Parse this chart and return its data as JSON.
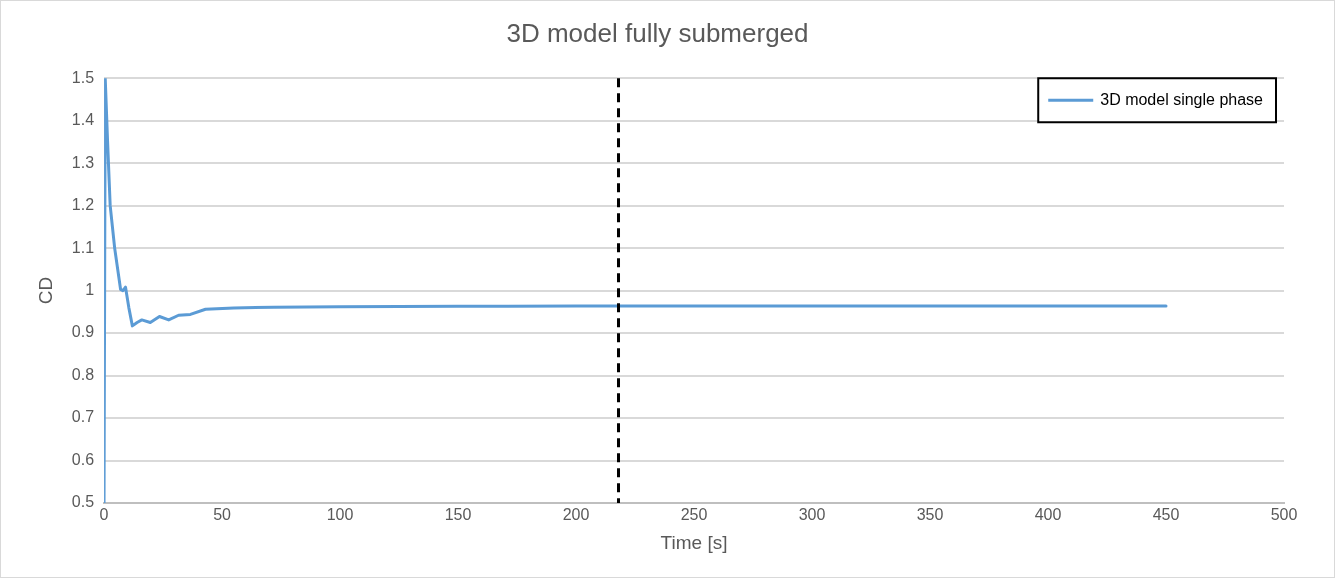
{
  "chart_data": {
    "type": "line",
    "title": "3D model fully submerged",
    "xlabel": "Time [s]",
    "ylabel": "CD",
    "series": [
      {
        "name": "3D model single phase",
        "color": "#5b9bd5",
        "x": [
          0,
          0.5,
          1.5,
          2.6,
          4.5,
          7,
          8,
          9.1,
          10.5,
          12,
          14,
          16,
          19.6,
          23.5,
          27.4,
          31.6,
          36.6,
          43,
          55,
          72,
          100,
          150,
          200,
          300,
          450
        ],
        "values": [
          0.5,
          1.5,
          1.35,
          1.2,
          1.1,
          1.003,
          1.0,
          1.008,
          0.96,
          0.917,
          0.925,
          0.931,
          0.925,
          0.939,
          0.931,
          0.942,
          0.944,
          0.956,
          0.959,
          0.961,
          0.962,
          0.963,
          0.964,
          0.964,
          0.964
        ]
      }
    ],
    "xlim": [
      0,
      500
    ],
    "xticks": [
      0,
      50,
      100,
      150,
      200,
      250,
      300,
      350,
      400,
      450,
      500
    ],
    "ylim": [
      0.5,
      1.5
    ],
    "yticks": [
      0.5,
      0.6,
      0.7,
      0.8,
      0.9,
      1,
      1.1,
      1.2,
      1.3,
      1.4,
      1.5
    ],
    "ref_lines": [
      {
        "axis": "x",
        "value": 218,
        "color": "#000000",
        "line_style": "dashed"
      }
    ],
    "grid": "y",
    "legend": "top right",
    "marker": "none",
    "line_style": "solid"
  }
}
